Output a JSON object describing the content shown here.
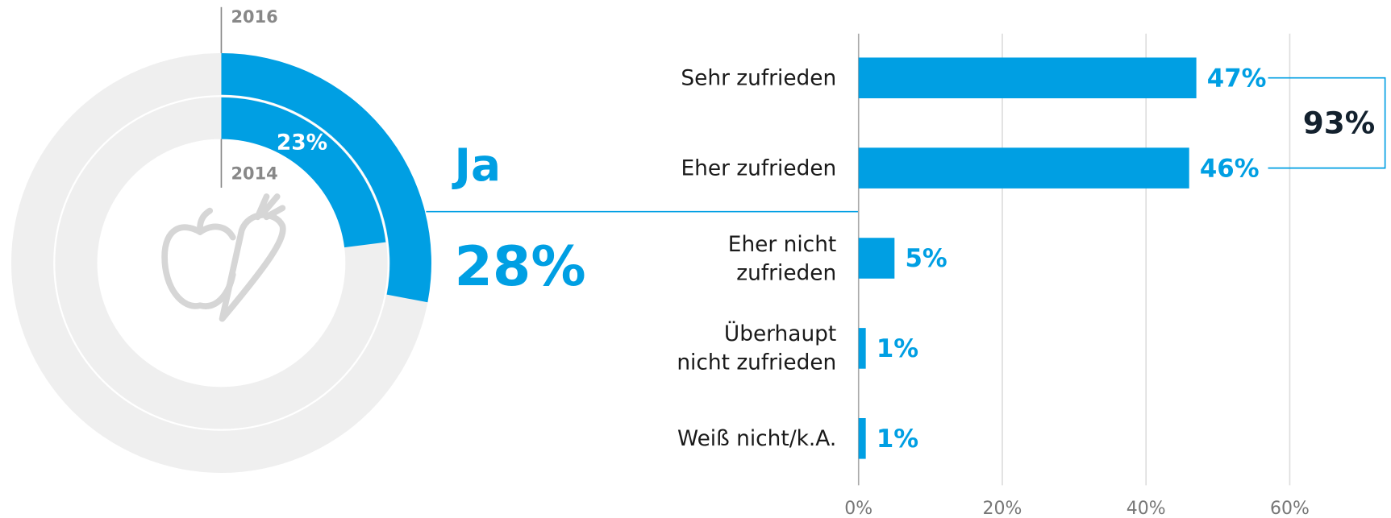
{
  "chart_data": [
    {
      "type": "donut",
      "categories": [
        "Ja"
      ],
      "series": [
        {
          "name": "2016",
          "color": "#009fe3",
          "values": [
            28
          ],
          "value_labels": [
            "28%"
          ]
        },
        {
          "name": "2014",
          "color": "#009fe3",
          "values": [
            23
          ],
          "value_labels": [
            "23%"
          ]
        }
      ]
    },
    {
      "type": "hbar",
      "categories": [
        "Sehr zufrieden",
        "Eher zufrieden",
        "Eher nicht\nzufrieden",
        "Überhaupt\nnicht zufrieden",
        "Weiß nicht/k.A."
      ],
      "values": [
        47,
        46,
        5,
        1,
        1
      ],
      "value_labels": [
        "47%",
        "46%",
        "5%",
        "1%",
        "1%"
      ],
      "color": "#009fe3",
      "xlim": [
        0,
        74
      ],
      "xticks": [
        {
          "value": 0,
          "label": "0%"
        },
        {
          "value": 20,
          "label": "20%"
        },
        {
          "value": 40,
          "label": "40%"
        },
        {
          "value": 60,
          "label": "60%"
        }
      ],
      "grid": true,
      "annotation": "93%"
    }
  ]
}
